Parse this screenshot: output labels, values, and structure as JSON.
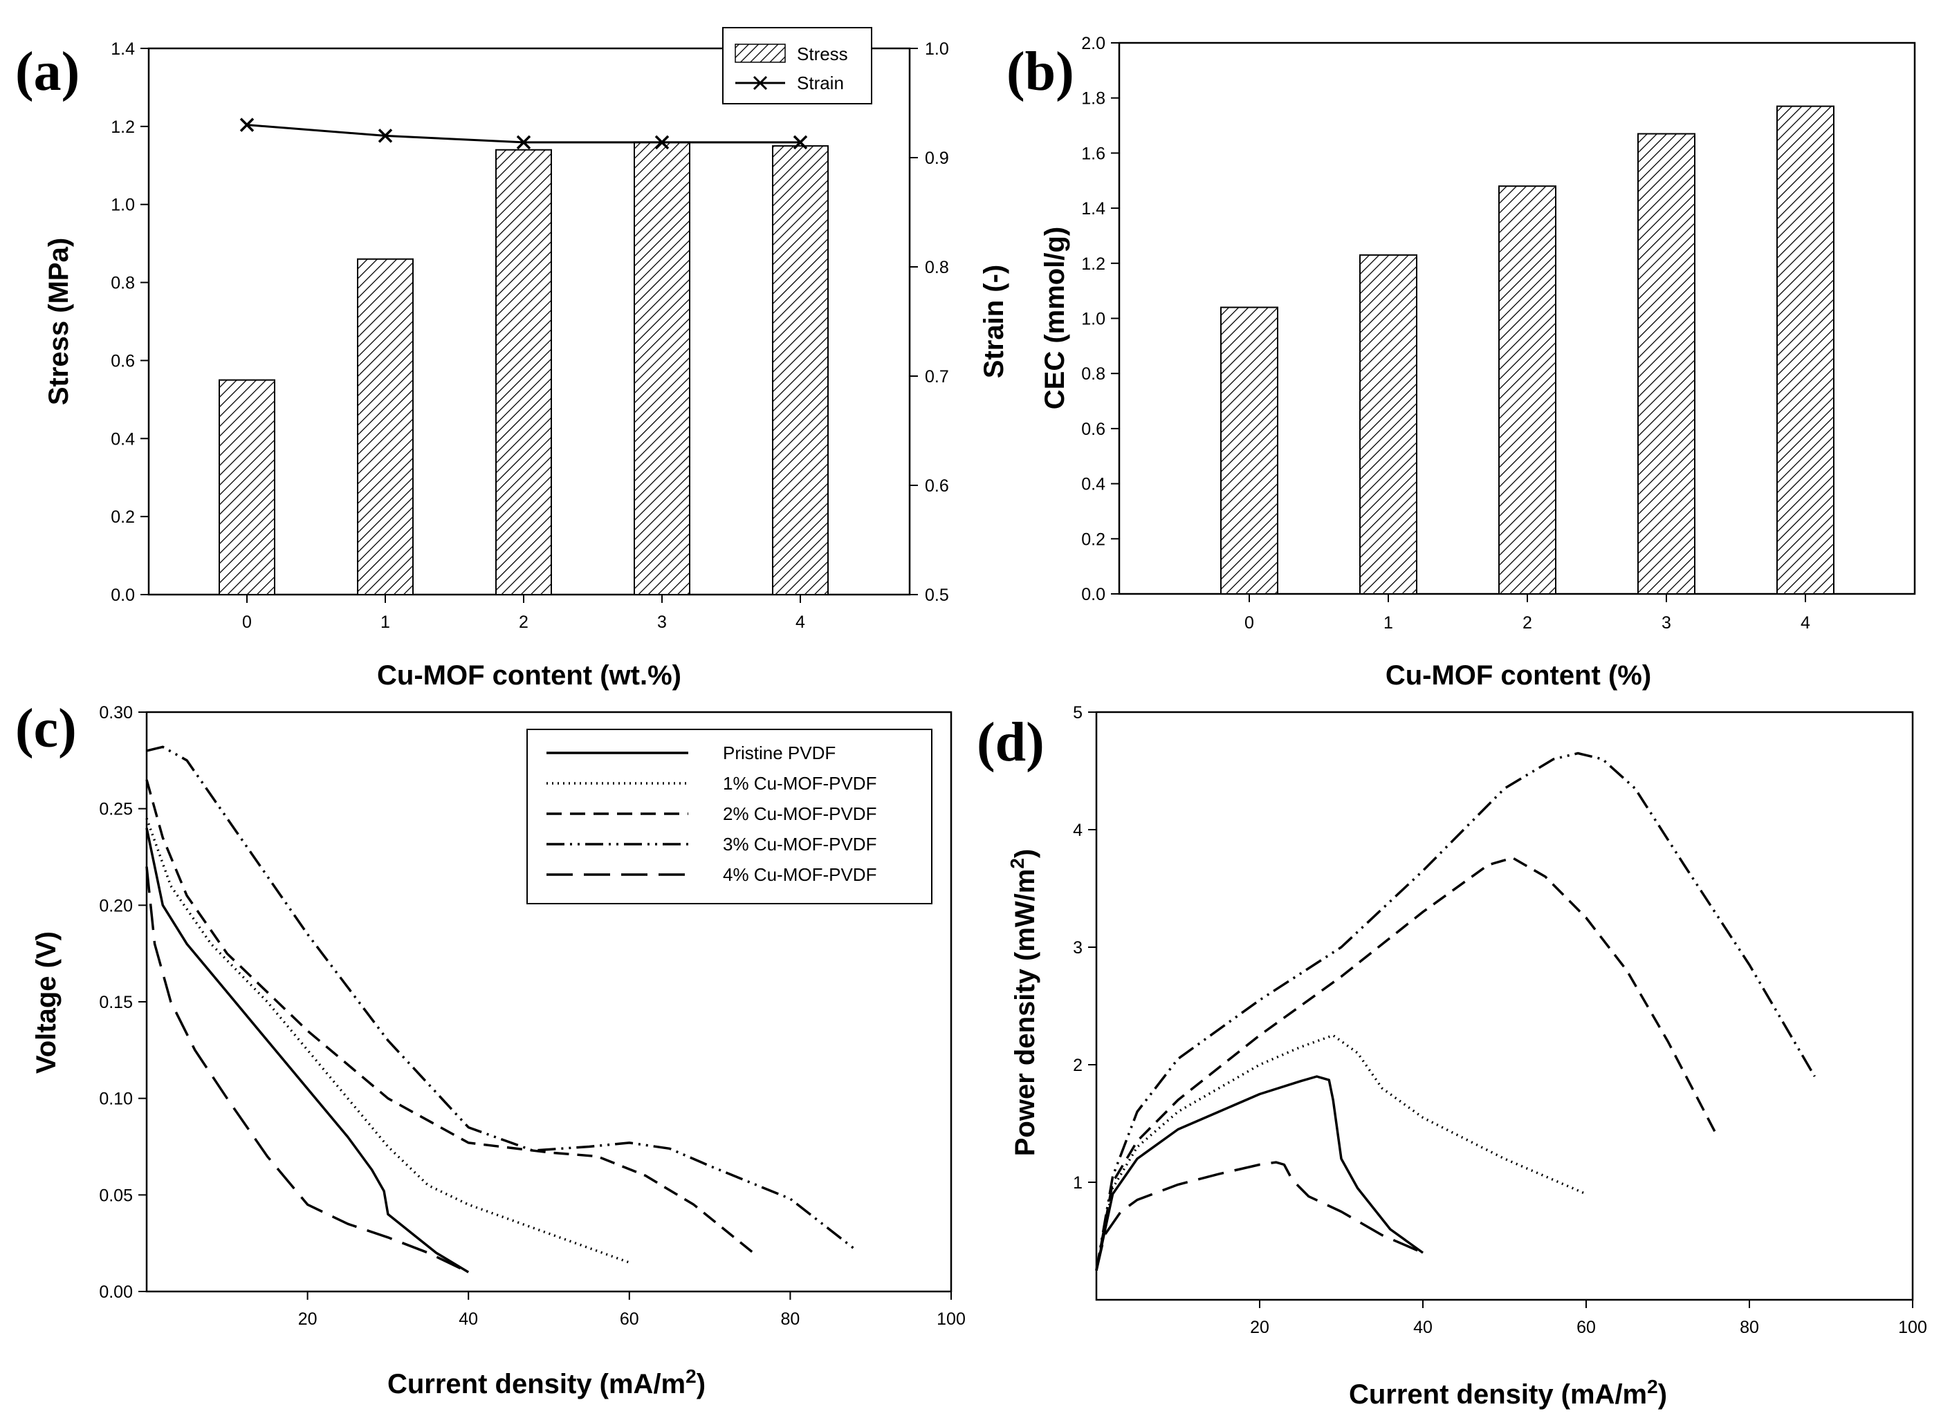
{
  "figure": {
    "panel_labels": [
      "(a)",
      "(b)",
      "(c)",
      "(d)"
    ]
  },
  "chart_data": [
    {
      "panel": "(a)",
      "type": "bar",
      "xlabel": "Cu-MOF content (wt.%)",
      "ylabel": "Stress (MPa)",
      "y2label": "Strain (-)",
      "categories": [
        "0",
        "1",
        "2",
        "3",
        "4"
      ],
      "series": [
        {
          "name": "Stress",
          "axis": "left",
          "kind": "bar",
          "values": [
            0.55,
            0.86,
            1.14,
            1.16,
            1.15
          ]
        },
        {
          "name": "Strain",
          "axis": "right",
          "kind": "line",
          "marker": "x",
          "values": [
            0.93,
            0.92,
            0.914,
            0.914,
            0.914
          ]
        }
      ],
      "ylim": [
        0,
        1.4
      ],
      "yticks": [
        "0.0",
        "0.2",
        "0.4",
        "0.6",
        "0.8",
        "1.0",
        "1.2",
        "1.4"
      ],
      "y2lim": [
        0.5,
        1.0
      ],
      "y2ticks": [
        "0.5",
        "0.6",
        "0.7",
        "0.8",
        "0.9",
        "1.0"
      ],
      "legend": {
        "position": "top-right",
        "entries": [
          "Stress",
          "Strain"
        ]
      }
    },
    {
      "panel": "(b)",
      "type": "bar",
      "xlabel": "Cu-MOF content (%)",
      "ylabel": "CEC (mmol/g)",
      "categories": [
        "0",
        "1",
        "2",
        "3",
        "4"
      ],
      "series": [
        {
          "name": "CEC",
          "values": [
            1.04,
            1.23,
            1.48,
            1.67,
            1.77
          ]
        }
      ],
      "ylim": [
        0,
        2.0
      ],
      "yticks": [
        "0.0",
        "0.2",
        "0.4",
        "0.6",
        "0.8",
        "1.0",
        "1.2",
        "1.4",
        "1.6",
        "1.8",
        "2.0"
      ]
    },
    {
      "panel": "(c)",
      "type": "line",
      "xlabel": "Current density (mA/m",
      "xlabel_sup": "2",
      "xlabel_end": ")",
      "ylabel": "Voltage  (V)",
      "xlim": [
        0,
        100
      ],
      "xticks": [
        "20",
        "40",
        "60",
        "80",
        "100"
      ],
      "ylim": [
        0,
        0.3
      ],
      "yticks": [
        "0.00",
        "0.05",
        "0.10",
        "0.15",
        "0.20",
        "0.25",
        "0.30"
      ],
      "legend": {
        "position": "top-right",
        "entries": [
          "Pristine PVDF",
          "1% Cu-MOF-PVDF",
          "2% Cu-MOF-PVDF",
          "3% Cu-MOF-PVDF",
          "4% Cu-MOF-PVDF"
        ]
      },
      "series": [
        {
          "name": "Pristine PVDF",
          "style": "solid",
          "x": [
            0,
            2,
            5,
            10,
            15,
            20,
            25,
            28,
            29.5,
            30,
            33,
            36,
            40
          ],
          "y": [
            0.24,
            0.2,
            0.18,
            0.155,
            0.13,
            0.105,
            0.08,
            0.063,
            0.052,
            0.04,
            0.03,
            0.02,
            0.01
          ]
        },
        {
          "name": "1% Cu-MOF-PVDF",
          "style": "dotted",
          "x": [
            0,
            3,
            8,
            15,
            20,
            25,
            30,
            35,
            40,
            50,
            60
          ],
          "y": [
            0.245,
            0.21,
            0.18,
            0.15,
            0.125,
            0.1,
            0.075,
            0.055,
            0.045,
            0.03,
            0.015
          ]
        },
        {
          "name": "2% Cu-MOF-PVDF",
          "style": "dashed",
          "x": [
            0,
            2,
            5,
            10,
            20,
            30,
            40,
            50,
            56,
            62,
            68,
            76
          ],
          "y": [
            0.265,
            0.235,
            0.205,
            0.175,
            0.135,
            0.1,
            0.077,
            0.072,
            0.07,
            0.06,
            0.045,
            0.018
          ]
        },
        {
          "name": "3% Cu-MOF-PVDF",
          "style": "dash-dot-dot",
          "x": [
            0,
            2,
            5,
            10,
            20,
            30,
            40,
            48,
            55,
            60,
            65,
            70,
            80,
            88
          ],
          "y": [
            0.28,
            0.282,
            0.275,
            0.245,
            0.185,
            0.13,
            0.085,
            0.073,
            0.075,
            0.077,
            0.074,
            0.065,
            0.048,
            0.022
          ]
        },
        {
          "name": "4% Cu-MOF-PVDF",
          "style": "long-dash",
          "x": [
            0,
            1,
            3,
            6,
            10,
            15,
            20,
            25,
            30,
            35,
            40
          ],
          "y": [
            0.22,
            0.18,
            0.15,
            0.125,
            0.1,
            0.07,
            0.045,
            0.035,
            0.028,
            0.02,
            0.01
          ]
        }
      ]
    },
    {
      "panel": "(d)",
      "type": "line",
      "xlabel": "Current density (mA/m",
      "xlabel_sup": "2",
      "xlabel_end": ")",
      "ylabel": "Power density (mW/m",
      "ylabel_sup": "2",
      "ylabel_end": ")",
      "xlim": [
        0,
        100
      ],
      "xticks": [
        "20",
        "40",
        "60",
        "80",
        "100"
      ],
      "ylim": [
        0,
        5
      ],
      "yticks": [
        "1",
        "2",
        "3",
        "4",
        "5"
      ],
      "series": [
        {
          "name": "Pristine PVDF",
          "style": "solid",
          "x": [
            0,
            2,
            5,
            10,
            15,
            20,
            25,
            27,
            28.5,
            29,
            30,
            32,
            36,
            40
          ],
          "y": [
            0.25,
            0.9,
            1.2,
            1.45,
            1.6,
            1.75,
            1.86,
            1.9,
            1.87,
            1.7,
            1.2,
            0.95,
            0.6,
            0.4
          ]
        },
        {
          "name": "1% Cu-MOF-PVDF",
          "style": "dotted",
          "x": [
            0,
            2,
            5,
            10,
            15,
            20,
            25,
            29,
            32,
            35,
            40,
            50,
            60
          ],
          "y": [
            0.25,
            0.95,
            1.3,
            1.6,
            1.8,
            2.0,
            2.15,
            2.25,
            2.1,
            1.8,
            1.55,
            1.2,
            0.9
          ]
        },
        {
          "name": "2% Cu-MOF-PVDF",
          "style": "dashed",
          "x": [
            0,
            2,
            5,
            10,
            20,
            30,
            40,
            48,
            51,
            55,
            60,
            65,
            70,
            76
          ],
          "y": [
            0.25,
            1.0,
            1.35,
            1.7,
            2.25,
            2.75,
            3.3,
            3.7,
            3.76,
            3.6,
            3.25,
            2.8,
            2.2,
            1.4
          ]
        },
        {
          "name": "3% Cu-MOF-PVDF",
          "style": "dash-dot-dot",
          "x": [
            0,
            2,
            5,
            10,
            20,
            30,
            40,
            50,
            56,
            59,
            62,
            66,
            72,
            80,
            88
          ],
          "y": [
            0.25,
            1.05,
            1.6,
            2.05,
            2.55,
            3.0,
            3.65,
            4.35,
            4.6,
            4.65,
            4.6,
            4.35,
            3.7,
            2.85,
            1.9
          ]
        },
        {
          "name": "4% Cu-MOF-PVDF",
          "style": "long-dash",
          "x": [
            0,
            1,
            3,
            5,
            10,
            15,
            20,
            22,
            23,
            24,
            26,
            30,
            35,
            40
          ],
          "y": [
            0.25,
            0.55,
            0.75,
            0.85,
            0.98,
            1.07,
            1.15,
            1.17,
            1.15,
            1.02,
            0.88,
            0.75,
            0.55,
            0.4
          ]
        }
      ]
    }
  ]
}
